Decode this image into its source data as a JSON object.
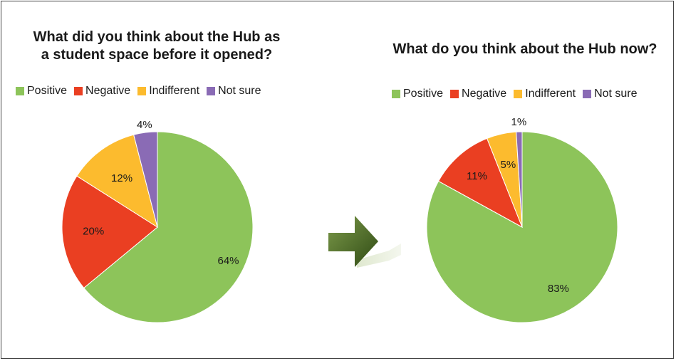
{
  "chart_data": [
    {
      "type": "pie",
      "title": "What did you think about the Hub as a student space before it opened?",
      "title_lines": [
        "What did you think about the Hub as",
        "a student space before it opened?"
      ],
      "categories": [
        "Positive",
        "Negative",
        "Indifferent",
        "Not sure"
      ],
      "values": [
        64,
        20,
        12,
        4
      ],
      "labels": [
        "64%",
        "20%",
        "12%",
        "4%"
      ],
      "colors": [
        "#8dc45a",
        "#ea3f22",
        "#fcbb2e",
        "#8a6bb5"
      ],
      "legend": "top"
    },
    {
      "type": "pie",
      "title": "What do you think about the Hub now?",
      "categories": [
        "Positive",
        "Negative",
        "Indifferent",
        "Not sure"
      ],
      "values": [
        83,
        11,
        5,
        1
      ],
      "labels": [
        "83%",
        "11%",
        "5%",
        "1%"
      ],
      "colors": [
        "#8dc45a",
        "#ea3f22",
        "#fcbb2e",
        "#8a6bb5"
      ],
      "legend": "top"
    }
  ],
  "arrow": {
    "icon": "right-arrow-icon",
    "color": "#4e6e2a"
  }
}
